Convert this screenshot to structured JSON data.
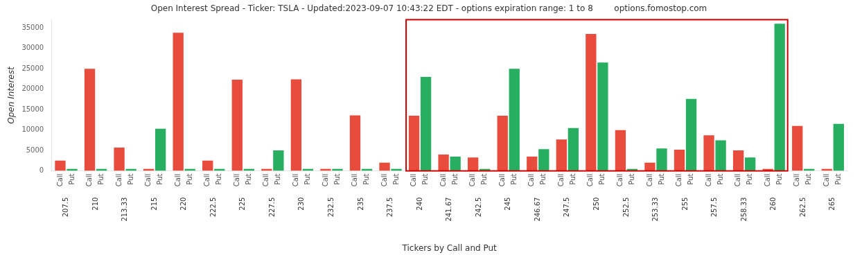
{
  "chart_data": {
    "type": "bar",
    "title": "Open Interest Spread - Ticker: TSLA - Updated:2023-09-07 10:43:22 EDT - options expiration range: 1 to 8        options.fomostop.com",
    "xlabel": "Tickers by Call and Put",
    "ylabel": "Open Interest",
    "categories": [
      "207.5",
      "210",
      "213.33",
      "215",
      "220",
      "222.5",
      "225",
      "227.5",
      "230",
      "232.5",
      "235",
      "237.5",
      "240",
      "241.67",
      "242.5",
      "245",
      "246.67",
      "247.5",
      "250",
      "252.5",
      "253.33",
      "255",
      "257.5",
      "258.33",
      "260",
      "262.5",
      "265"
    ],
    "series": [
      {
        "name": "Call",
        "color": "#e84c3d",
        "values": [
          2500,
          25000,
          5700,
          500,
          33800,
          2500,
          22300,
          500,
          22400,
          500,
          13600,
          2000,
          13500,
          4000,
          3300,
          13500,
          3500,
          7700,
          33500,
          10000,
          2000,
          5200,
          8700,
          5000,
          500,
          11000,
          500
        ]
      },
      {
        "name": "Put",
        "color": "#27ae60",
        "values": [
          500,
          500,
          500,
          10300,
          500,
          500,
          500,
          5000,
          500,
          500,
          500,
          500,
          23000,
          3500,
          500,
          25000,
          5300,
          10500,
          26500,
          500,
          5500,
          17600,
          7500,
          3300,
          36000,
          500,
          11500
        ]
      }
    ],
    "ylim": [
      0,
      37000
    ],
    "yticks": [
      0,
      5000,
      10000,
      15000,
      20000,
      25000,
      30000,
      35000
    ],
    "grid": false,
    "highlight": {
      "from": "240",
      "to": "260",
      "color": "#cc0000"
    }
  }
}
